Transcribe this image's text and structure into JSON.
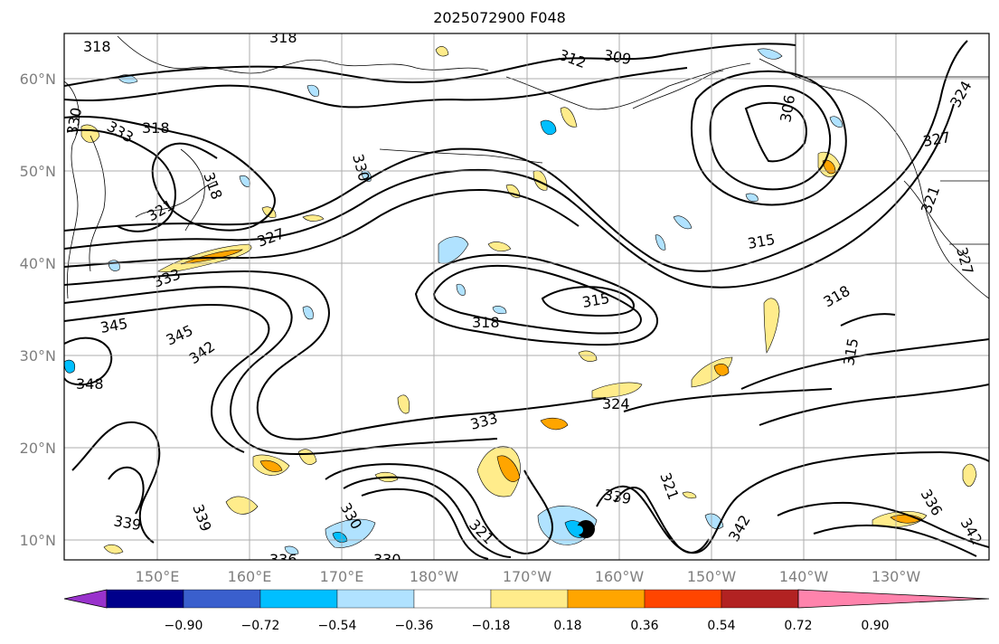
{
  "title": "2025072900 F048",
  "map": {
    "lat_labels": [
      "60°N",
      "50°N",
      "40°N",
      "30°N",
      "20°N",
      "10°N"
    ],
    "lon_labels": [
      "150°E",
      "160°E",
      "170°E",
      "180°W",
      "170°W",
      "160°W",
      "150°W",
      "140°W",
      "130°W"
    ],
    "contour_labels": [
      "318",
      "318",
      "312",
      "309",
      "306",
      "324",
      "330",
      "333",
      "318",
      "318",
      "321",
      "327",
      "330",
      "327",
      "321",
      "333",
      "327",
      "315",
      "315",
      "318",
      "345",
      "345",
      "342",
      "348",
      "333",
      "324",
      "315",
      "318",
      "339",
      "339",
      "330",
      "321",
      "339",
      "321",
      "342",
      "336",
      "342",
      "336",
      "330"
    ]
  },
  "colorbar": {
    "ticks": [
      "−0.90",
      "−0.72",
      "−0.54",
      "−0.36",
      "−0.18",
      "0.18",
      "0.36",
      "0.54",
      "0.72",
      "0.90"
    ],
    "colors": [
      "#9932cc",
      "#00008b",
      "#3a5fcd",
      "#00bfff",
      "#b0e2ff",
      "#ffffff",
      "#ffec8b",
      "#ffa500",
      "#ff4500",
      "#b22222",
      "#ff83ac"
    ]
  }
}
